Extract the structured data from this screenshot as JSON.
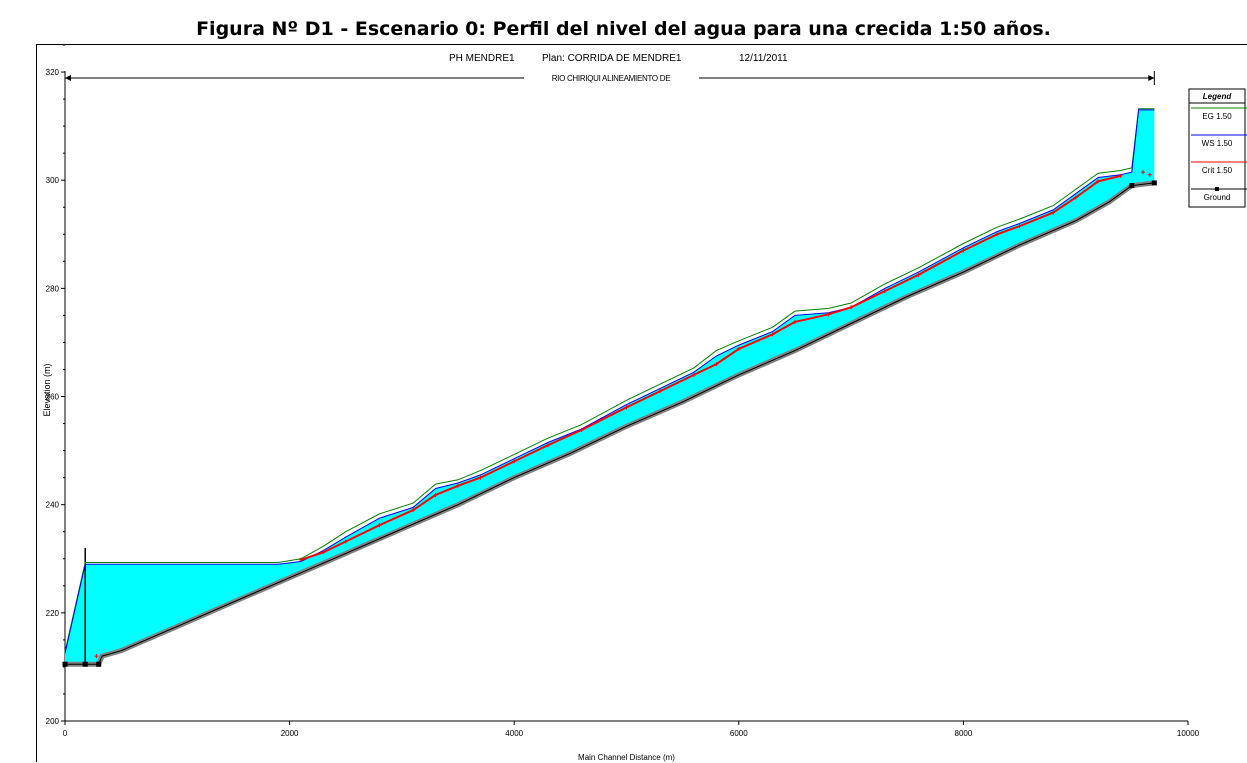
{
  "figure_title": "Figura Nº D1 -  Escenario 0: Perfil del nivel del agua para una crecida 1:50 años.",
  "chart_data": {
    "type": "area",
    "header": {
      "project": "PH MENDRE1",
      "plan": "Plan: CORRIDA DE MENDRE1",
      "date": "12/11/2011"
    },
    "reach_label": "RIO CHIRIQUI ALINEAMIENTO DE",
    "xlabel": "Main Channel Distance (m)",
    "ylabel": "Elevation (m)",
    "xlim": [
      0,
      10000
    ],
    "ylim": [
      200,
      325
    ],
    "xticks": [
      0,
      2000,
      4000,
      6000,
      8000,
      10000
    ],
    "yticks": [
      200,
      220,
      240,
      260,
      280,
      300,
      320
    ],
    "legend": {
      "title": "Legend",
      "position": "top-right",
      "entries": [
        {
          "label": "EG  1.50",
          "color": "#008000"
        },
        {
          "label": "WS  1.50",
          "color": "#0000ff"
        },
        {
          "label": "Crit  1.50",
          "color": "#ff0000"
        },
        {
          "label": "Ground",
          "color": "#000000"
        }
      ]
    },
    "water_fill_color": "#00ffff",
    "ground_color": "#808080",
    "series": [
      {
        "name": "Ground",
        "x": [
          0,
          180,
          300,
          330,
          500,
          1000,
          1500,
          2000,
          2500,
          3000,
          3500,
          4000,
          4500,
          5000,
          5500,
          6000,
          6500,
          7000,
          7500,
          8000,
          8500,
          9000,
          9300,
          9500,
          9700
        ],
        "y": [
          210.5,
          210.5,
          210.5,
          212,
          213,
          217.5,
          222,
          226.5,
          231,
          235.5,
          240,
          245,
          249.5,
          254.5,
          259,
          264,
          268.5,
          273.5,
          278.5,
          283,
          288,
          292.5,
          296,
          299,
          299.5
        ]
      },
      {
        "name": "WS  1.50",
        "x": [
          0,
          180,
          1000,
          1900,
          2100,
          2300,
          2500,
          2800,
          3100,
          3300,
          3500,
          3700,
          4000,
          4300,
          4600,
          5000,
          5300,
          5600,
          5800,
          6000,
          6300,
          6500,
          6800,
          7000,
          7300,
          7600,
          8000,
          8300,
          8500,
          8800,
          9000,
          9200,
          9400,
          9500,
          9560,
          9700
        ],
        "y": [
          212.5,
          229,
          229,
          229,
          229.5,
          231.5,
          234,
          237.5,
          239.5,
          243,
          244,
          245.5,
          248.5,
          251.5,
          254,
          258.5,
          261.5,
          264.5,
          267.5,
          269.5,
          272,
          275,
          275.5,
          276.5,
          280,
          283,
          287.5,
          290.5,
          292,
          294.5,
          297.5,
          300.5,
          301,
          301.5,
          313,
          313
        ]
      },
      {
        "name": "EG  1.50",
        "x": [
          0,
          180,
          1000,
          1900,
          2100,
          2300,
          2500,
          2800,
          3100,
          3300,
          3500,
          3700,
          4000,
          4300,
          4600,
          5000,
          5300,
          5600,
          5800,
          6000,
          6300,
          6500,
          6800,
          7000,
          7300,
          7600,
          8000,
          8300,
          8500,
          8800,
          9000,
          9200,
          9400,
          9500,
          9560,
          9700
        ],
        "y": [
          212.8,
          229.3,
          229.3,
          229.3,
          230,
          232.3,
          235,
          238.3,
          240.3,
          243.8,
          244.6,
          246.3,
          249.3,
          252.3,
          254.8,
          259.3,
          262.3,
          265.3,
          268.5,
          270.3,
          272.8,
          275.8,
          276.3,
          277.3,
          280.8,
          283.8,
          288.3,
          291.3,
          292.8,
          295.3,
          298.3,
          301.3,
          301.8,
          302.3,
          313.2,
          313.2
        ]
      },
      {
        "name": "Crit  1.50",
        "x": [
          2100,
          2300,
          2500,
          2800,
          3100,
          3300,
          3500,
          3700,
          4000,
          4300,
          4600,
          5000,
          5300,
          5600,
          5800,
          6000,
          6300,
          6500,
          6800,
          7000,
          7300,
          7600,
          8000,
          8300,
          8500,
          8800,
          9000,
          9200,
          9400
        ],
        "y": [
          229.8,
          231.2,
          233.2,
          236.2,
          239,
          241.8,
          243.5,
          245,
          248,
          251,
          253.8,
          258,
          261,
          264,
          266,
          268.8,
          271.5,
          273.8,
          275.2,
          276.5,
          279.5,
          282.5,
          287,
          290,
          291.5,
          294,
          296.8,
          299.8,
          300.8
        ]
      }
    ]
  }
}
